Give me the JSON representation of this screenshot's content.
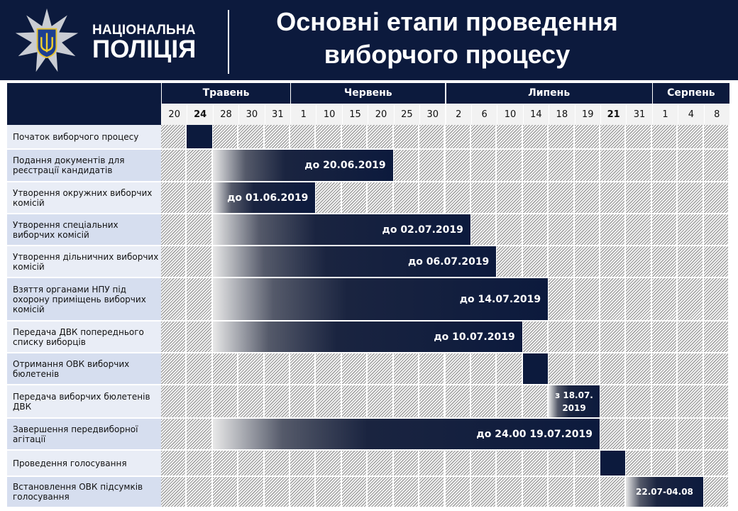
{
  "header": {
    "org_line1": "НАЦІОНАЛЬНА",
    "org_line2": "ПОЛІЦІЯ",
    "title": "Основні етапи проведення виборчого процесу",
    "brand_color": "#0c1a3d",
    "emblem": "police-star-trident-emblem"
  },
  "months": [
    {
      "label": "Травень",
      "span": 5
    },
    {
      "label": "Червень",
      "span": 6
    },
    {
      "label": "Липень",
      "span": 8
    },
    {
      "label": "Серпень",
      "span": 3
    }
  ],
  "days": [
    {
      "d": "20"
    },
    {
      "d": "24",
      "bold": true
    },
    {
      "d": "28"
    },
    {
      "d": "30"
    },
    {
      "d": "31"
    },
    {
      "d": "1"
    },
    {
      "d": "10"
    },
    {
      "d": "15"
    },
    {
      "d": "20"
    },
    {
      "d": "25"
    },
    {
      "d": "30"
    },
    {
      "d": "2"
    },
    {
      "d": "6"
    },
    {
      "d": "10"
    },
    {
      "d": "14"
    },
    {
      "d": "18"
    },
    {
      "d": "19"
    },
    {
      "d": "21",
      "bold": true
    },
    {
      "d": "31"
    },
    {
      "d": "1"
    },
    {
      "d": "4"
    },
    {
      "d": "8"
    }
  ],
  "rows": [
    {
      "label": "Початок виборчого процесу",
      "start": 1,
      "end": 1,
      "bar": "",
      "solid": true
    },
    {
      "label": "Подання документів для реєстрації кандидатів",
      "start": 2,
      "end": 8,
      "bar": "до 20.06.2019"
    },
    {
      "label": "Утворення окружних виборчих комісій",
      "start": 2,
      "end": 5,
      "bar": "до 01.06.2019"
    },
    {
      "label": "Утворення спеціальних виборчих комісій",
      "start": 2,
      "end": 11,
      "bar": "до 02.07.2019"
    },
    {
      "label": "Утворення дільничних виборчих комісій",
      "start": 2,
      "end": 12,
      "bar": "до 06.07.2019"
    },
    {
      "label": "Взяття органами НПУ під охорону приміщень виборчих комісій",
      "start": 2,
      "end": 14,
      "bar": "до 14.07.2019"
    },
    {
      "label": "Передача ДВК попереднього списку виборців",
      "start": 2,
      "end": 13,
      "bar": "до 10.07.2019"
    },
    {
      "label": "Отримання ОВК виборчих бюлетенів",
      "start": 14,
      "end": 14,
      "bar": "",
      "solid": true
    },
    {
      "label": "Передача виборчих бюлетенів ДВК",
      "start": 15,
      "end": 16,
      "bar": "з 18.07. 2019",
      "small": true
    },
    {
      "label": "Завершення передвиборної агітації",
      "start": 2,
      "end": 16,
      "bar": "до 24.00  19.07.2019"
    },
    {
      "label": "Проведення голосування",
      "start": 17,
      "end": 17,
      "bar": "",
      "solid": true
    },
    {
      "label": "Встановлення ОВК підсумків голосування",
      "start": 18,
      "end": 20,
      "bar": "22.07-04.08",
      "small": true
    }
  ]
}
